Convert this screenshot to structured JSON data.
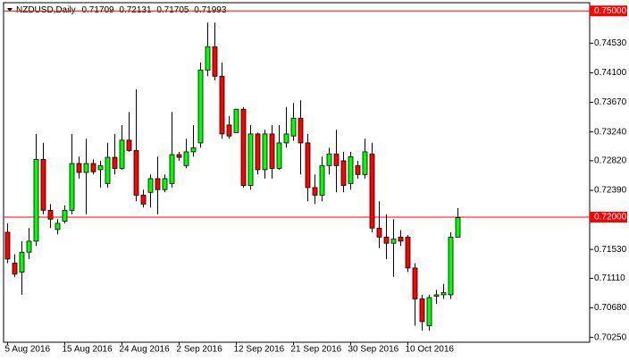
{
  "chart_data": {
    "type": "candlestick",
    "title": "NZDUSD,Daily",
    "categories": [
      "5 Aug 2016",
      null,
      null,
      null,
      null,
      null,
      null,
      null,
      "15 Aug 2016",
      null,
      null,
      null,
      null,
      null,
      null,
      null,
      "24 Aug 2016",
      null,
      null,
      null,
      null,
      null,
      null,
      null,
      "2 Sep 2016",
      null,
      null,
      null,
      null,
      null,
      null,
      null,
      "12 Sep 2016",
      null,
      null,
      null,
      null,
      null,
      null,
      null,
      "21 Sep 2016",
      null,
      null,
      null,
      null,
      null,
      null,
      null,
      "30 Sep 2016",
      null,
      null,
      null,
      null,
      null,
      null,
      null,
      "10 Oct 2016",
      null,
      null,
      null,
      null,
      null,
      null,
      null
    ],
    "open": [
      0.7178,
      0.7133,
      0.712,
      0.7149,
      0.7165,
      0.7284,
      0.721,
      0.7182,
      0.7194,
      0.721,
      0.7278,
      0.7265,
      0.7278,
      0.7269,
      0.7249,
      0.7287,
      0.7271,
      0.7312,
      0.7297,
      0.7232,
      0.7236,
      0.7256,
      0.724,
      0.7249,
      0.7291,
      0.7275,
      0.7295,
      0.7308,
      0.7414,
      0.7448,
      0.7405,
      0.7334,
      0.7323,
      0.7357,
      0.7246,
      0.7321,
      0.7269,
      0.7321,
      0.7271,
      0.7308,
      0.7318,
      0.7344,
      0.7308,
      0.7243,
      0.7232,
      0.7275,
      0.7292,
      0.7282,
      0.7249,
      0.7275,
      0.7262,
      0.7292,
      0.7184,
      0.7171,
      0.7162,
      0.7171,
      0.7171,
      0.7126,
      0.7081,
      0.7042,
      0.7085,
      0.7087,
      0.7087,
      0.71709
    ],
    "high": [
      0.7191,
      0.7146,
      0.7165,
      0.7184,
      0.7321,
      0.7308,
      0.7219,
      0.7197,
      0.7217,
      0.7321,
      0.7288,
      0.7314,
      0.7284,
      0.7282,
      0.7308,
      0.7321,
      0.7334,
      0.7353,
      0.7386,
      0.724,
      0.7262,
      0.7288,
      0.7262,
      0.7353,
      0.7295,
      0.7314,
      0.7334,
      0.7425,
      0.7483,
      0.7483,
      0.7425,
      0.7347,
      0.7357,
      0.736,
      0.7334,
      0.7323,
      0.7327,
      0.7334,
      0.7334,
      0.736,
      0.7366,
      0.737,
      0.7321,
      0.7262,
      0.7288,
      0.7301,
      0.7327,
      0.7295,
      0.7295,
      0.7282,
      0.7314,
      0.7308,
      0.7223,
      0.7204,
      0.7197,
      0.7181,
      0.7174,
      0.7133,
      0.7087,
      0.7087,
      0.7094,
      0.7103,
      0.7178,
      0.72131
    ],
    "low": [
      0.7133,
      0.7113,
      0.7087,
      0.7139,
      0.7158,
      0.7204,
      0.7184,
      0.7175,
      0.7191,
      0.7204,
      0.7256,
      0.7204,
      0.7262,
      0.7243,
      0.7243,
      0.7262,
      0.7269,
      0.7295,
      0.7223,
      0.7214,
      0.7214,
      0.7204,
      0.7236,
      0.7243,
      0.7282,
      0.7271,
      0.7288,
      0.7301,
      0.7405,
      0.7399,
      0.7314,
      0.7314,
      0.7323,
      0.7243,
      0.724,
      0.7262,
      0.7256,
      0.7256,
      0.7269,
      0.7301,
      0.7311,
      0.7262,
      0.7223,
      0.7219,
      0.7223,
      0.7262,
      0.7236,
      0.7236,
      0.724,
      0.7256,
      0.7256,
      0.7178,
      0.7155,
      0.7139,
      0.7113,
      0.7158,
      0.712,
      0.7042,
      0.7035,
      0.7035,
      0.7074,
      0.7081,
      0.7081,
      0.71705
    ],
    "close": [
      0.7139,
      0.7117,
      0.7149,
      0.7165,
      0.7284,
      0.721,
      0.7197,
      0.7191,
      0.721,
      0.7278,
      0.7265,
      0.7278,
      0.7266,
      0.7275,
      0.7287,
      0.7271,
      0.7312,
      0.7297,
      0.7232,
      0.7219,
      0.7256,
      0.724,
      0.7256,
      0.7291,
      0.7287,
      0.7295,
      0.7301,
      0.7414,
      0.7448,
      0.7405,
      0.7321,
      0.7318,
      0.7357,
      0.7246,
      0.7321,
      0.7269,
      0.7321,
      0.7271,
      0.7308,
      0.7321,
      0.7344,
      0.7308,
      0.7243,
      0.7232,
      0.7275,
      0.7292,
      0.7275,
      0.7246,
      0.7288,
      0.7262,
      0.7295,
      0.7184,
      0.7171,
      0.7162,
      0.7168,
      0.7165,
      0.7126,
      0.7081,
      0.7048,
      0.7083,
      0.7087,
      0.709,
      0.7171,
      0.71993
    ],
    "up_color": "#00ff00",
    "down_color": "#ff0000",
    "wick_color": "#000000",
    "ylim": [
      0.7018,
      0.7512
    ],
    "yticks": [
      {
        "value": 0.7025,
        "label": "0.70250"
      },
      {
        "value": 0.7068,
        "label": "0.70680"
      },
      {
        "value": 0.7111,
        "label": "0.71110"
      },
      {
        "value": 0.7153,
        "label": "0.71530"
      },
      {
        "value": 0.7239,
        "label": "0.72390"
      },
      {
        "value": 0.7282,
        "label": "0.72820"
      },
      {
        "value": 0.7324,
        "label": "0.73240"
      },
      {
        "value": 0.7367,
        "label": "0.73670"
      },
      {
        "value": 0.741,
        "label": "0.74100"
      },
      {
        "value": 0.7453,
        "label": "0.74530"
      }
    ],
    "levels": [
      {
        "value": 0.75,
        "label": "0.75000"
      },
      {
        "value": 0.72,
        "label": "0.72000"
      }
    ],
    "level_color": "#ff0000",
    "grid": false
  }
}
